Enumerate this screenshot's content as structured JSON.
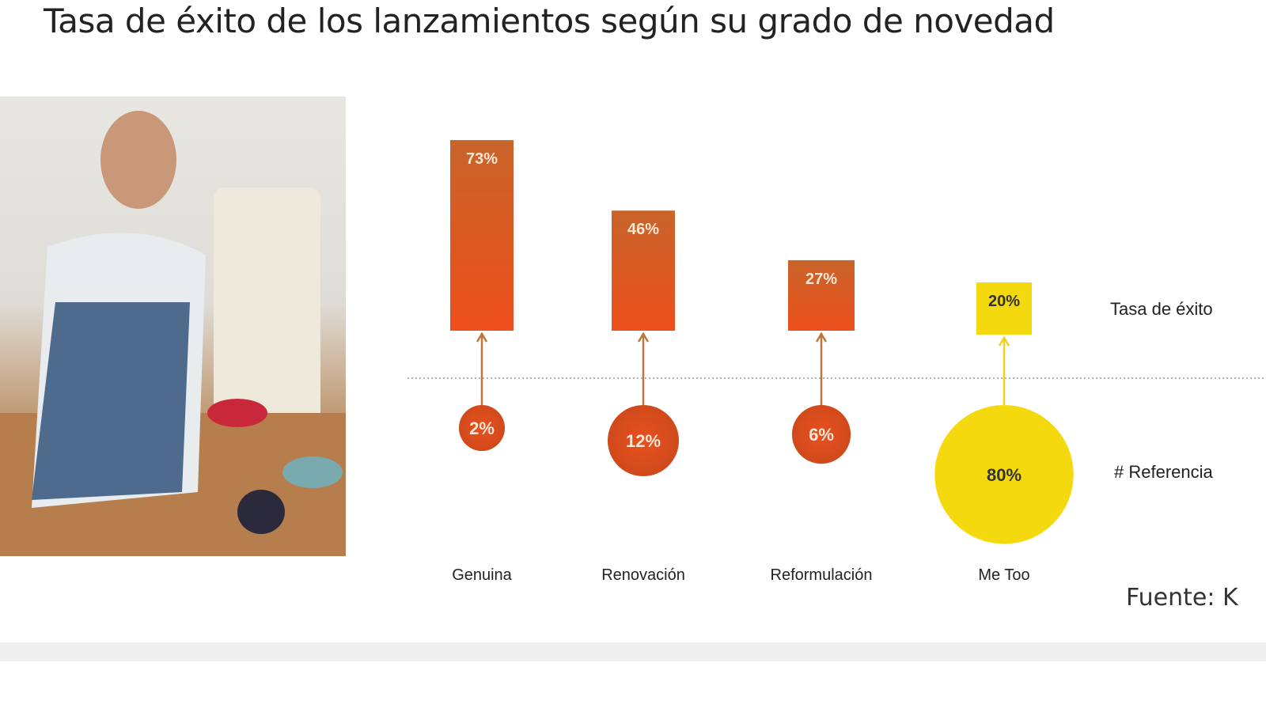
{
  "title": "Tasa de éxito de los lanzamientos según su grado de novedad",
  "source": "Fuente: K",
  "chart_data": {
    "type": "bar",
    "title": "Tasa de éxito de los lanzamientos según su grado de novedad",
    "categories": [
      "Genuina",
      "Renovación",
      "Reformulación",
      "Me Too"
    ],
    "series": [
      {
        "name": "Tasa de éxito",
        "values": [
          73,
          46,
          27,
          20
        ],
        "labels": [
          "73%",
          "46%",
          "27%",
          "20%"
        ]
      },
      {
        "name": "# Referencia",
        "values": [
          2,
          12,
          6,
          80
        ],
        "labels": [
          "2%",
          "12%",
          "6%",
          "80%"
        ]
      }
    ],
    "legend": [
      "Tasa de éxito",
      "# Referencia"
    ],
    "legend_placement": "right",
    "colors": {
      "orange_top": "#c8642a",
      "orange_bottom": "#ee4f1c",
      "yellow": "#f5d90f",
      "arrow_orange": "#c0763a",
      "arrow_yellow": "#f0d020"
    }
  }
}
